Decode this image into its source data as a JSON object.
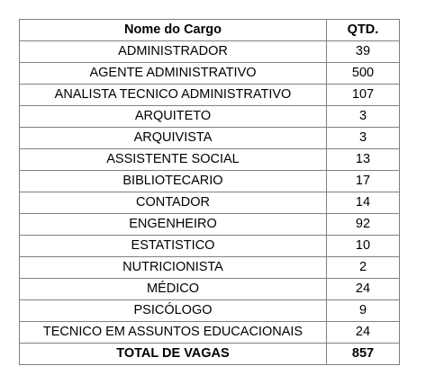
{
  "table": {
    "headers": [
      "Nome do Cargo",
      "QTD."
    ],
    "rows": [
      [
        "ADMINISTRADOR",
        "39"
      ],
      [
        "AGENTE ADMINISTRATIVO",
        "500"
      ],
      [
        "ANALISTA TECNICO ADMINISTRATIVO",
        "107"
      ],
      [
        "ARQUITETO",
        "3"
      ],
      [
        "ARQUIVISTA",
        "3"
      ],
      [
        "ASSISTENTE SOCIAL",
        "13"
      ],
      [
        "BIBLIOTECARIO",
        "17"
      ],
      [
        "CONTADOR",
        "14"
      ],
      [
        "ENGENHEIRO",
        "92"
      ],
      [
        "ESTATISTICO",
        "10"
      ],
      [
        "NUTRICIONISTA",
        "2"
      ],
      [
        "MÉDICO",
        "24"
      ],
      [
        "PSICÓLOGO",
        "9"
      ],
      [
        "TECNICO EM ASSUNTOS EDUCACIONAIS",
        "24"
      ]
    ],
    "total": [
      "TOTAL DE VAGAS",
      "857"
    ]
  }
}
